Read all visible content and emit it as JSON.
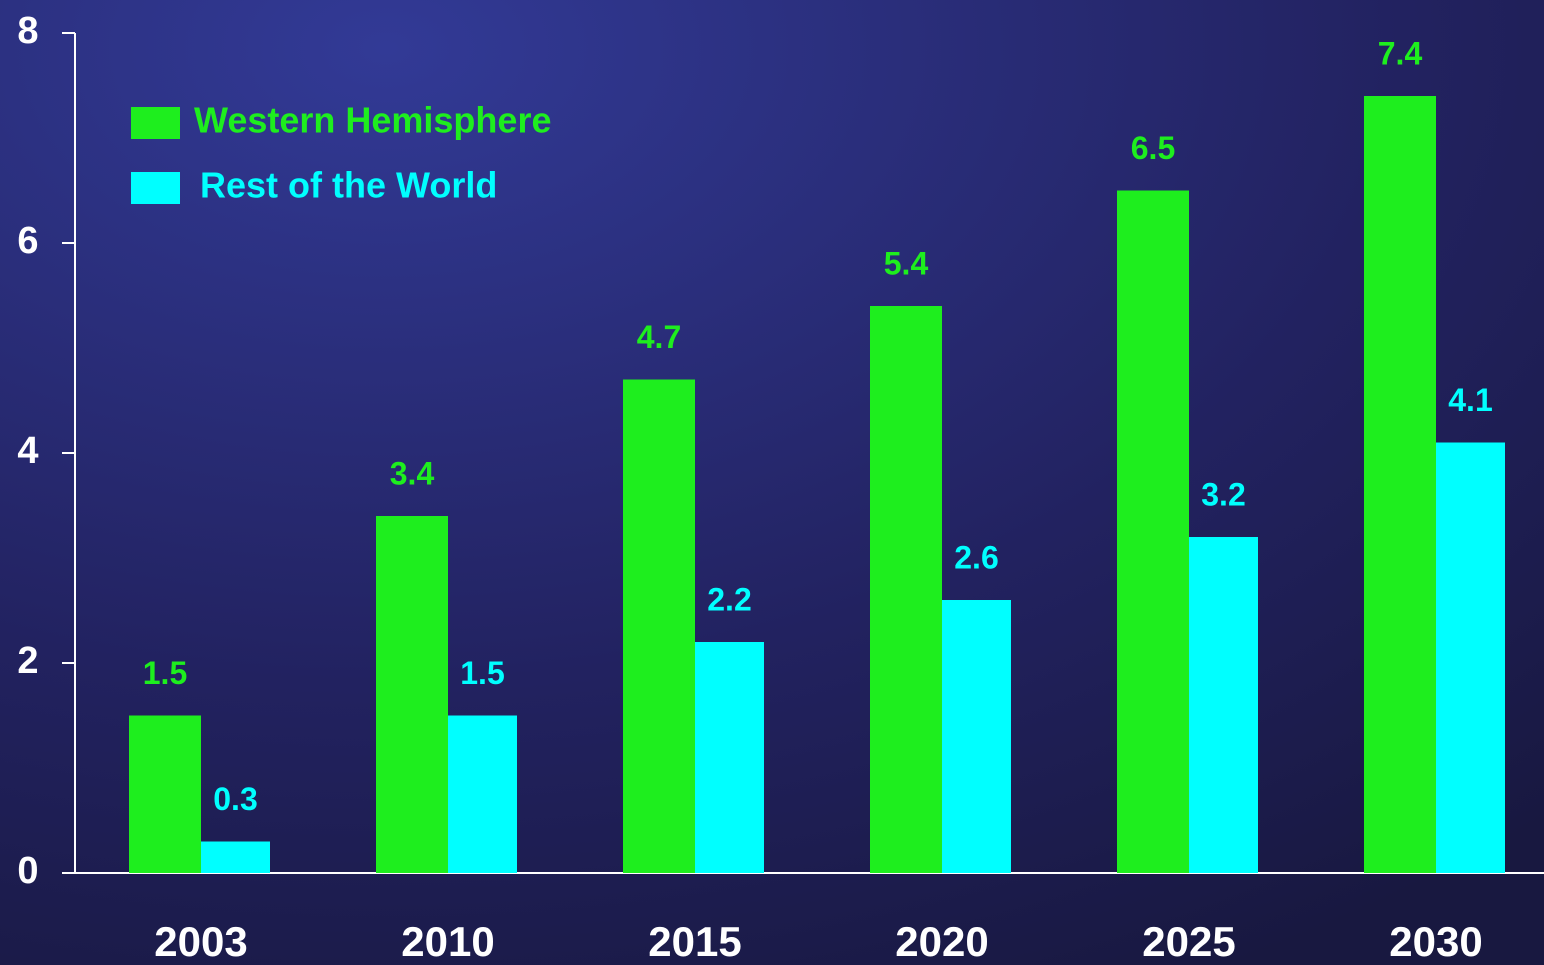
{
  "chart_data": {
    "type": "bar",
    "categories": [
      "2003",
      "2010",
      "2015",
      "2020",
      "2025",
      "2030"
    ],
    "series": [
      {
        "name": "Western Hemisphere",
        "color": "#1eee1e",
        "values": [
          1.5,
          3.4,
          4.7,
          5.4,
          6.5,
          7.4
        ]
      },
      {
        "name": "Rest of the World",
        "color": "#00ffff",
        "values": [
          0.3,
          1.5,
          2.2,
          2.6,
          3.2,
          4.1
        ]
      }
    ],
    "ylim": [
      0,
      8
    ],
    "yticks": [
      0,
      2,
      4,
      6,
      8
    ],
    "legend": "upper left"
  }
}
